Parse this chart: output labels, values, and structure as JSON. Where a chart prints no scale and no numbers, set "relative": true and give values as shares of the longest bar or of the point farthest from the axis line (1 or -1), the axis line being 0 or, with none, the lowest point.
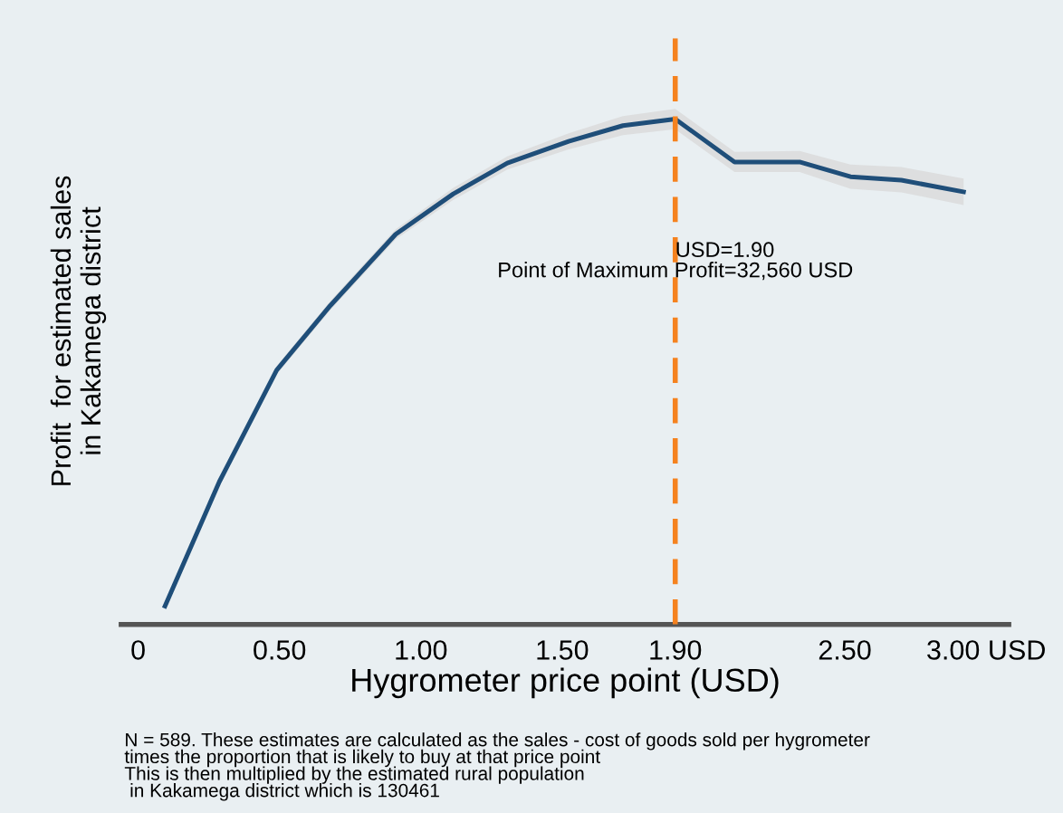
{
  "chart_data": {
    "type": "line",
    "relative": true,
    "xlabel": "Hygrometer price point (USD)",
    "ylabel": "Profit  for estimated sales\nin Kakamega district",
    "x": [
      0.095,
      0.287,
      0.49,
      0.68,
      0.911,
      1.115,
      1.306,
      1.523,
      1.715,
      1.9,
      2.11,
      2.34,
      2.52,
      2.7,
      2.92
    ],
    "series": [
      {
        "color": "#1f4e79",
        "values": [
          0.036,
          0.282,
          0.503,
          0.631,
          0.772,
          0.852,
          0.913,
          0.956,
          0.987,
          1,
          0.915,
          0.915,
          0.886,
          0.879,
          0.856
        ],
        "lower": [
          0.03,
          0.275,
          0.495,
          0.622,
          0.762,
          0.84,
          0.9,
          0.94,
          0.968,
          0.98,
          0.895,
          0.895,
          0.862,
          0.855,
          0.83
        ],
        "upper": [
          0.042,
          0.289,
          0.511,
          0.64,
          0.782,
          0.864,
          0.926,
          0.972,
          1.006,
          1.02,
          0.935,
          0.937,
          0.91,
          0.905,
          0.882
        ]
      }
    ],
    "xlim": [
      -0.06,
      3.08
    ],
    "xticks": [
      0,
      {
        "value": 0.5,
        "label": "0.50"
      },
      {
        "value": 1.0,
        "label": "1.00"
      },
      {
        "value": 1.5,
        "label": "1.50"
      },
      {
        "value": 1.9,
        "label": "1.90"
      },
      {
        "value": 2.5,
        "label": "2.50"
      },
      {
        "value": 3.0,
        "label": "3.00 USD"
      }
    ],
    "tick_labels": "x",
    "grid": false,
    "legend": false,
    "marker": "none",
    "line_style": "solid",
    "ref_lines": [
      {
        "axis": "x",
        "value": 1.9,
        "label": "USD=1.90",
        "color": "#f5821f",
        "line_style": "dashed"
      }
    ],
    "annotations": [
      {
        "text": "Point of Maximum Profit=32,560 USD",
        "x": 1.9,
        "y": 0.698
      },
      "N = 589. These estimates are calculated as the sales - cost of goods sold per hygrometer\ntimes the proportion that is likely to buy at that price point\nThis is then multiplied by the estimated rural population\n in Kakamega district which is 130461"
    ]
  }
}
